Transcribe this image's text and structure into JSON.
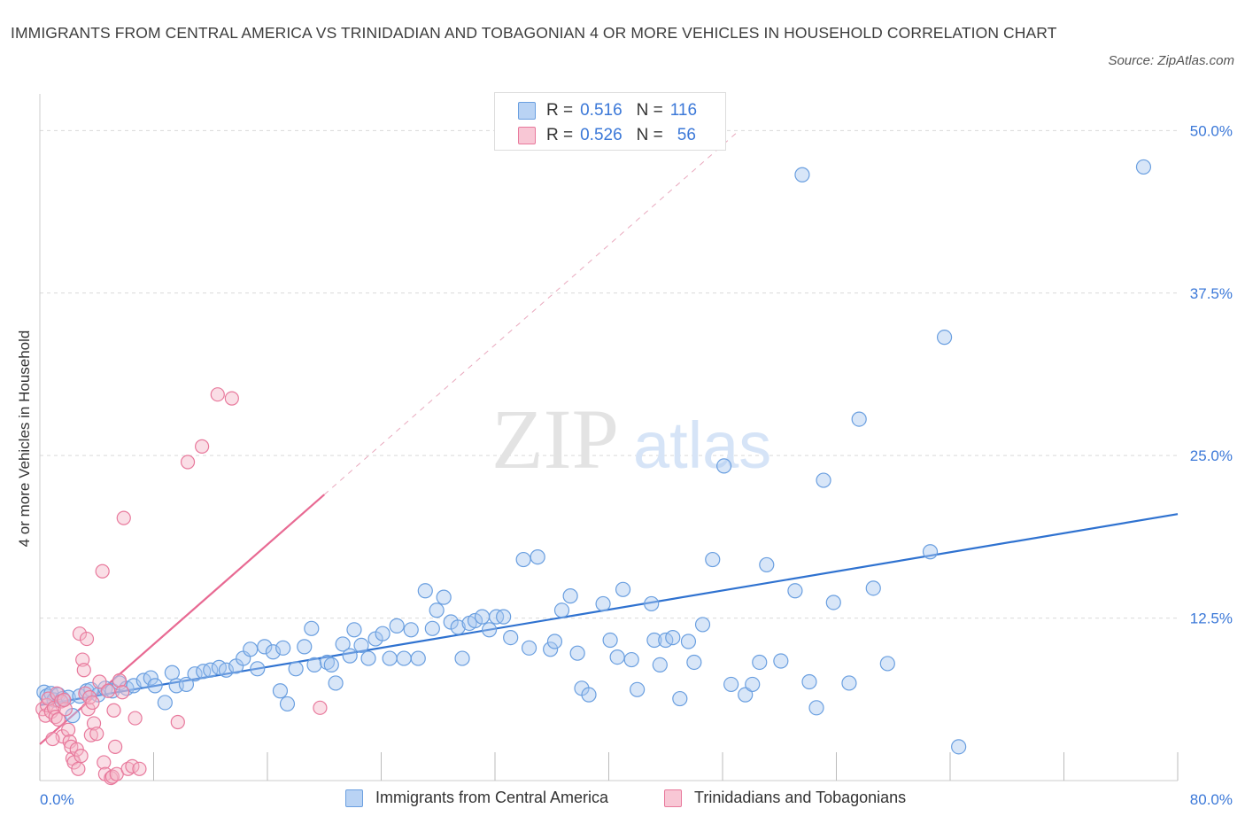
{
  "title": "IMMIGRANTS FROM CENTRAL AMERICA VS TRINIDADIAN AND TOBAGONIAN 4 OR MORE VEHICLES IN HOUSEHOLD CORRELATION CHART",
  "source": "Source: ZipAtlas.com",
  "watermark": {
    "zip": "ZIP",
    "atlas": "atlas"
  },
  "legend_top": {
    "rows": [
      {
        "r_label": "R =",
        "r_value": "0.516",
        "n_label": "N =",
        "n_value": "116"
      },
      {
        "r_label": "R =",
        "r_value": "0.526",
        "n_label": "N =",
        "n_value": "56"
      }
    ]
  },
  "legend_bottom": {
    "items": [
      "Immigrants from Central America",
      "Trinidadians and Tobagonians"
    ]
  },
  "colors": {
    "blue_fill": "#a9c8f0",
    "blue_stroke": "#6a9fe0",
    "blue_line": "#2f72d0",
    "pink_fill": "#f5b6c8",
    "pink_stroke": "#e8799c",
    "pink_line": "#e86a93",
    "tick_text": "#3b78d8",
    "grid": "#d9d9d9"
  },
  "chart_data": {
    "type": "scatter",
    "title": "IMMIGRANTS FROM CENTRAL AMERICA VS TRINIDADIAN AND TOBAGONIAN 4 OR MORE VEHICLES IN HOUSEHOLD CORRELATION CHART",
    "xlabel": "",
    "ylabel": "4 or more Vehicles in Household",
    "xlim": [
      0,
      80
    ],
    "ylim": [
      0,
      52
    ],
    "x_tick_labels": [
      {
        "value": 0,
        "label": "0.0%"
      },
      {
        "value": 80,
        "label": "80.0%"
      }
    ],
    "y_tick_labels": [
      {
        "value": 12.5,
        "label": "12.5%"
      },
      {
        "value": 25,
        "label": "25.0%"
      },
      {
        "value": 37.5,
        "label": "37.5%"
      },
      {
        "value": 50,
        "label": "50.0%"
      }
    ],
    "legend_position": "top-center",
    "series": [
      {
        "name": "Immigrants from Central America",
        "r": 0.516,
        "n": 116,
        "trend": {
          "x": [
            0,
            80
          ],
          "y": [
            5.8,
            20.5
          ]
        },
        "points": [
          [
            0.3,
            6.8
          ],
          [
            0.5,
            6.5
          ],
          [
            0.8,
            6.7
          ],
          [
            1.0,
            6.2
          ],
          [
            1.3,
            6.6
          ],
          [
            1.6,
            6.3
          ],
          [
            2.0,
            6.4
          ],
          [
            2.3,
            5.0
          ],
          [
            2.8,
            6.5
          ],
          [
            3.3,
            6.9
          ],
          [
            3.6,
            7.0
          ],
          [
            4.1,
            6.6
          ],
          [
            4.6,
            7.1
          ],
          [
            5.1,
            6.9
          ],
          [
            5.6,
            7.5
          ],
          [
            6.1,
            7.1
          ],
          [
            6.6,
            7.3
          ],
          [
            7.3,
            7.7
          ],
          [
            7.8,
            7.9
          ],
          [
            8.1,
            7.3
          ],
          [
            8.8,
            6.0
          ],
          [
            9.3,
            8.3
          ],
          [
            9.6,
            7.3
          ],
          [
            10.3,
            7.4
          ],
          [
            10.9,
            8.2
          ],
          [
            11.5,
            8.4
          ],
          [
            12.0,
            8.5
          ],
          [
            12.6,
            8.7
          ],
          [
            13.1,
            8.5
          ],
          [
            13.8,
            8.8
          ],
          [
            14.3,
            9.4
          ],
          [
            14.8,
            10.1
          ],
          [
            15.3,
            8.6
          ],
          [
            15.8,
            10.3
          ],
          [
            16.4,
            9.9
          ],
          [
            17.1,
            10.2
          ],
          [
            16.9,
            6.9
          ],
          [
            17.4,
            5.9
          ],
          [
            18.0,
            8.6
          ],
          [
            18.6,
            10.3
          ],
          [
            19.3,
            8.9
          ],
          [
            19.1,
            11.7
          ],
          [
            20.2,
            9.1
          ],
          [
            20.5,
            8.9
          ],
          [
            20.8,
            7.5
          ],
          [
            21.3,
            10.5
          ],
          [
            21.8,
            9.6
          ],
          [
            22.1,
            11.6
          ],
          [
            22.6,
            10.4
          ],
          [
            23.1,
            9.4
          ],
          [
            23.6,
            10.9
          ],
          [
            24.1,
            11.3
          ],
          [
            24.6,
            9.4
          ],
          [
            25.1,
            11.9
          ],
          [
            25.6,
            9.4
          ],
          [
            26.1,
            11.6
          ],
          [
            26.6,
            9.4
          ],
          [
            27.1,
            14.6
          ],
          [
            27.6,
            11.7
          ],
          [
            27.9,
            13.1
          ],
          [
            28.4,
            14.1
          ],
          [
            28.9,
            12.2
          ],
          [
            29.4,
            11.8
          ],
          [
            29.7,
            9.4
          ],
          [
            30.2,
            12.1
          ],
          [
            30.6,
            12.3
          ],
          [
            31.1,
            12.6
          ],
          [
            31.6,
            11.6
          ],
          [
            32.1,
            12.6
          ],
          [
            32.6,
            12.6
          ],
          [
            33.1,
            11.0
          ],
          [
            34.0,
            17.0
          ],
          [
            34.4,
            10.2
          ],
          [
            35.0,
            17.2
          ],
          [
            35.9,
            10.1
          ],
          [
            36.2,
            10.7
          ],
          [
            36.7,
            13.1
          ],
          [
            37.3,
            14.2
          ],
          [
            37.8,
            9.8
          ],
          [
            38.1,
            7.1
          ],
          [
            38.6,
            6.6
          ],
          [
            39.6,
            13.6
          ],
          [
            40.1,
            10.8
          ],
          [
            40.6,
            9.5
          ],
          [
            41.0,
            14.7
          ],
          [
            41.6,
            9.3
          ],
          [
            42.0,
            7.0
          ],
          [
            43.0,
            13.6
          ],
          [
            43.2,
            10.8
          ],
          [
            43.6,
            8.9
          ],
          [
            44.0,
            10.8
          ],
          [
            44.5,
            11.0
          ],
          [
            45.0,
            6.3
          ],
          [
            45.6,
            10.7
          ],
          [
            46.0,
            9.1
          ],
          [
            46.6,
            12.0
          ],
          [
            47.3,
            17.0
          ],
          [
            48.1,
            24.2
          ],
          [
            48.6,
            7.4
          ],
          [
            49.6,
            6.6
          ],
          [
            50.1,
            7.4
          ],
          [
            50.6,
            9.1
          ],
          [
            51.1,
            16.6
          ],
          [
            52.1,
            9.2
          ],
          [
            53.1,
            14.6
          ],
          [
            53.6,
            46.6
          ],
          [
            54.1,
            7.6
          ],
          [
            54.6,
            5.6
          ],
          [
            55.1,
            23.1
          ],
          [
            55.8,
            13.7
          ],
          [
            56.9,
            7.5
          ],
          [
            57.6,
            27.8
          ],
          [
            58.6,
            14.8
          ],
          [
            59.6,
            9.0
          ],
          [
            62.6,
            17.6
          ],
          [
            63.6,
            34.1
          ],
          [
            64.6,
            2.6
          ],
          [
            77.6,
            47.2
          ]
        ]
      },
      {
        "name": "Trinidadians and Tobagonians",
        "r": 0.526,
        "n": 56,
        "trend": {
          "x": [
            0,
            20
          ],
          "y": [
            2.8,
            22.0
          ]
        },
        "points": [
          [
            0.2,
            5.5
          ],
          [
            0.4,
            5.0
          ],
          [
            0.5,
            5.8
          ],
          [
            0.6,
            6.3
          ],
          [
            0.8,
            5.3
          ],
          [
            1.0,
            5.6
          ],
          [
            1.1,
            4.9
          ],
          [
            1.2,
            6.7
          ],
          [
            1.3,
            4.7
          ],
          [
            1.5,
            6.1
          ],
          [
            1.6,
            3.4
          ],
          [
            1.8,
            5.5
          ],
          [
            2.0,
            3.9
          ],
          [
            2.1,
            3.0
          ],
          [
            2.2,
            2.6
          ],
          [
            2.3,
            1.7
          ],
          [
            2.4,
            1.4
          ],
          [
            2.6,
            2.4
          ],
          [
            2.7,
            0.9
          ],
          [
            2.8,
            11.3
          ],
          [
            2.9,
            1.9
          ],
          [
            3.0,
            9.3
          ],
          [
            3.1,
            8.5
          ],
          [
            3.2,
            6.7
          ],
          [
            3.3,
            10.9
          ],
          [
            3.4,
            5.5
          ],
          [
            3.5,
            6.4
          ],
          [
            3.6,
            3.5
          ],
          [
            3.7,
            6.0
          ],
          [
            3.8,
            4.4
          ],
          [
            4.0,
            3.6
          ],
          [
            4.2,
            7.6
          ],
          [
            4.4,
            16.1
          ],
          [
            4.5,
            1.4
          ],
          [
            4.6,
            0.5
          ],
          [
            4.8,
            6.9
          ],
          [
            5.0,
            0.2
          ],
          [
            5.1,
            0.3
          ],
          [
            5.2,
            5.4
          ],
          [
            5.3,
            2.6
          ],
          [
            5.4,
            0.5
          ],
          [
            5.6,
            7.7
          ],
          [
            5.8,
            6.8
          ],
          [
            5.9,
            20.2
          ],
          [
            6.2,
            0.9
          ],
          [
            6.5,
            1.1
          ],
          [
            6.7,
            4.8
          ],
          [
            7.0,
            0.9
          ],
          [
            9.7,
            4.5
          ],
          [
            10.4,
            24.5
          ],
          [
            11.4,
            25.7
          ],
          [
            12.5,
            29.7
          ],
          [
            13.5,
            29.4
          ],
          [
            19.7,
            5.6
          ],
          [
            1.7,
            6.2
          ],
          [
            0.9,
            3.2
          ]
        ]
      }
    ]
  }
}
